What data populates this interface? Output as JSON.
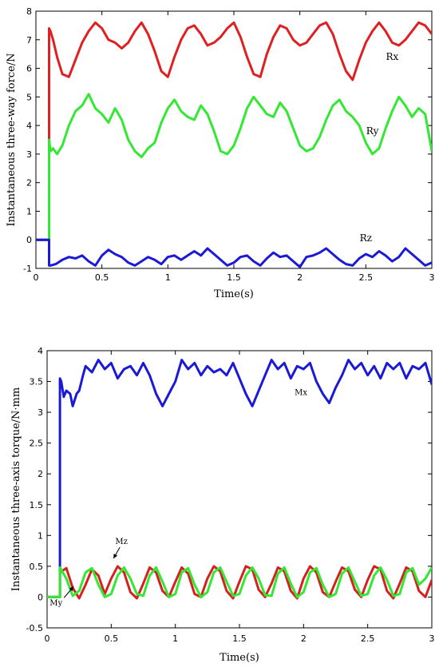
{
  "chart_data": [
    {
      "type": "line",
      "title": "",
      "xlabel": "Time(s)",
      "ylabel": "Instantaneous three-way force/N",
      "xlim": [
        0,
        3
      ],
      "ylim": [
        -1,
        8
      ],
      "xticks": [
        "0",
        "0.5",
        "1",
        "1.5",
        "2",
        "2.5",
        "3"
      ],
      "yticks": [
        "-1",
        "0",
        "1",
        "2",
        "3",
        "4",
        "5",
        "6",
        "7",
        "8"
      ],
      "grid": false,
      "annotations": [
        {
          "text": "Rx",
          "x": 2.7,
          "y": 6.3
        },
        {
          "text": "Ry",
          "x": 2.55,
          "y": 3.7
        },
        {
          "text": "Rz",
          "x": 2.5,
          "y": -0.05
        }
      ],
      "series": [
        {
          "name": "Rx",
          "color": "#e02020",
          "x": [
            0,
            0.1,
            0.1,
            0.11,
            0.13,
            0.16,
            0.2,
            0.25,
            0.3,
            0.35,
            0.4,
            0.45,
            0.5,
            0.55,
            0.6,
            0.65,
            0.7,
            0.75,
            0.8,
            0.85,
            0.9,
            0.95,
            1.0,
            1.05,
            1.1,
            1.15,
            1.2,
            1.25,
            1.3,
            1.35,
            1.4,
            1.45,
            1.5,
            1.55,
            1.6,
            1.65,
            1.7,
            1.75,
            1.8,
            1.85,
            1.9,
            1.95,
            2.0,
            2.05,
            2.1,
            2.15,
            2.2,
            2.25,
            2.3,
            2.35,
            2.4,
            2.45,
            2.5,
            2.55,
            2.6,
            2.65,
            2.7,
            2.75,
            2.8,
            2.85,
            2.9,
            2.95,
            3.0
          ],
          "y": [
            0,
            0,
            7.4,
            7.3,
            7.0,
            6.4,
            5.8,
            5.7,
            6.3,
            6.9,
            7.3,
            7.6,
            7.4,
            7.0,
            6.9,
            6.7,
            6.9,
            7.3,
            7.6,
            7.2,
            6.6,
            5.9,
            5.7,
            6.4,
            7.0,
            7.4,
            7.5,
            7.2,
            6.8,
            6.9,
            7.1,
            7.4,
            7.6,
            7.1,
            6.4,
            5.8,
            5.7,
            6.5,
            7.1,
            7.5,
            7.4,
            7.0,
            6.8,
            6.9,
            7.2,
            7.5,
            7.6,
            7.2,
            6.5,
            5.9,
            5.6,
            6.3,
            6.9,
            7.3,
            7.6,
            7.3,
            6.9,
            6.8,
            7.0,
            7.3,
            7.6,
            7.5,
            7.2
          ]
        },
        {
          "name": "Ry",
          "color": "#33e833",
          "x": [
            0,
            0.1,
            0.1,
            0.11,
            0.13,
            0.16,
            0.2,
            0.25,
            0.3,
            0.35,
            0.4,
            0.45,
            0.5,
            0.55,
            0.6,
            0.65,
            0.7,
            0.75,
            0.8,
            0.85,
            0.9,
            0.95,
            1.0,
            1.05,
            1.1,
            1.15,
            1.2,
            1.25,
            1.3,
            1.35,
            1.4,
            1.45,
            1.5,
            1.55,
            1.6,
            1.65,
            1.7,
            1.75,
            1.8,
            1.85,
            1.9,
            1.95,
            2.0,
            2.05,
            2.1,
            2.15,
            2.2,
            2.25,
            2.3,
            2.35,
            2.4,
            2.45,
            2.5,
            2.55,
            2.6,
            2.65,
            2.7,
            2.75,
            2.8,
            2.85,
            2.9,
            2.95,
            3.0
          ],
          "y": [
            0,
            0,
            3.5,
            3.1,
            3.2,
            3.0,
            3.3,
            4.0,
            4.5,
            4.7,
            5.1,
            4.6,
            4.4,
            4.1,
            4.6,
            4.2,
            3.5,
            3.1,
            2.9,
            3.2,
            3.4,
            4.1,
            4.6,
            4.9,
            4.5,
            4.3,
            4.2,
            4.7,
            4.4,
            3.8,
            3.1,
            3.0,
            3.3,
            3.9,
            4.6,
            5.0,
            4.7,
            4.4,
            4.3,
            4.8,
            4.5,
            3.9,
            3.3,
            3.1,
            3.2,
            3.6,
            4.2,
            4.7,
            4.9,
            4.5,
            4.3,
            4.0,
            3.4,
            3.0,
            3.2,
            3.9,
            4.5,
            5.0,
            4.7,
            4.3,
            4.6,
            4.4,
            3.1
          ]
        },
        {
          "name": "Rz",
          "color": "#1a1ad6",
          "x": [
            0,
            0.1,
            0.1,
            0.11,
            0.15,
            0.2,
            0.25,
            0.3,
            0.35,
            0.4,
            0.45,
            0.5,
            0.55,
            0.6,
            0.65,
            0.7,
            0.75,
            0.8,
            0.85,
            0.9,
            0.95,
            1.0,
            1.05,
            1.1,
            1.15,
            1.2,
            1.25,
            1.3,
            1.35,
            1.4,
            1.45,
            1.5,
            1.55,
            1.6,
            1.65,
            1.7,
            1.75,
            1.8,
            1.85,
            1.9,
            1.95,
            2.0,
            2.05,
            2.1,
            2.15,
            2.2,
            2.25,
            2.3,
            2.35,
            2.4,
            2.45,
            2.5,
            2.55,
            2.6,
            2.65,
            2.7,
            2.75,
            2.8,
            2.85,
            2.9,
            2.95,
            3.0
          ],
          "y": [
            0,
            0,
            -0.9,
            -0.9,
            -0.85,
            -0.7,
            -0.6,
            -0.65,
            -0.55,
            -0.75,
            -0.9,
            -0.55,
            -0.35,
            -0.5,
            -0.6,
            -0.8,
            -0.9,
            -0.75,
            -0.6,
            -0.7,
            -0.85,
            -0.6,
            -0.55,
            -0.7,
            -0.55,
            -0.4,
            -0.55,
            -0.3,
            -0.5,
            -0.7,
            -0.9,
            -0.8,
            -0.6,
            -0.55,
            -0.75,
            -0.9,
            -0.65,
            -0.45,
            -0.6,
            -0.55,
            -0.75,
            -0.95,
            -0.6,
            -0.55,
            -0.45,
            -0.3,
            -0.5,
            -0.7,
            -0.85,
            -0.9,
            -0.65,
            -0.5,
            -0.6,
            -0.4,
            -0.55,
            -0.75,
            -0.6,
            -0.3,
            -0.5,
            -0.7,
            -0.9,
            -0.8
          ]
        }
      ]
    },
    {
      "type": "line",
      "title": "",
      "xlabel": "Time(s)",
      "ylabel": "Instantaneous three-axis torque/N·mm",
      "xlim": [
        0,
        3
      ],
      "ylim": [
        -0.5,
        4
      ],
      "xticks": [
        "0",
        "0.5",
        "1",
        "1.5",
        "2",
        "2.5",
        "3"
      ],
      "yticks": [
        "-0.5",
        "0",
        "0.5",
        "1",
        "1.5",
        "2",
        "2.5",
        "3",
        "3.5",
        "4"
      ],
      "grid": false,
      "annotations": [
        {
          "text": "Mx",
          "x": 1.98,
          "y": 3.28
        },
        {
          "text": "Mz",
          "x": 0.58,
          "y": 0.86
        },
        {
          "text": "My",
          "x": 0.07,
          "y": -0.14
        }
      ],
      "series": [
        {
          "name": "Mx",
          "color": "#1a1ad6",
          "x": [
            0,
            0.1,
            0.1,
            0.11,
            0.13,
            0.15,
            0.18,
            0.2,
            0.23,
            0.25,
            0.28,
            0.3,
            0.35,
            0.4,
            0.45,
            0.5,
            0.55,
            0.6,
            0.65,
            0.7,
            0.75,
            0.8,
            0.85,
            0.9,
            0.95,
            1.0,
            1.05,
            1.1,
            1.15,
            1.2,
            1.25,
            1.3,
            1.35,
            1.4,
            1.45,
            1.5,
            1.55,
            1.6,
            1.65,
            1.7,
            1.75,
            1.8,
            1.85,
            1.9,
            1.95,
            2.0,
            2.05,
            2.1,
            2.15,
            2.2,
            2.25,
            2.3,
            2.35,
            2.4,
            2.45,
            2.5,
            2.55,
            2.6,
            2.65,
            2.7,
            2.75,
            2.8,
            2.85,
            2.9,
            2.95,
            3.0
          ],
          "y": [
            0,
            0,
            3.55,
            3.5,
            3.25,
            3.35,
            3.3,
            3.1,
            3.3,
            3.35,
            3.6,
            3.75,
            3.65,
            3.85,
            3.7,
            3.8,
            3.55,
            3.7,
            3.75,
            3.6,
            3.8,
            3.6,
            3.3,
            3.1,
            3.3,
            3.5,
            3.85,
            3.7,
            3.8,
            3.6,
            3.75,
            3.65,
            3.7,
            3.6,
            3.8,
            3.55,
            3.3,
            3.1,
            3.35,
            3.6,
            3.85,
            3.7,
            3.8,
            3.55,
            3.75,
            3.7,
            3.8,
            3.5,
            3.3,
            3.15,
            3.4,
            3.6,
            3.85,
            3.7,
            3.8,
            3.6,
            3.75,
            3.55,
            3.8,
            3.7,
            3.8,
            3.55,
            3.75,
            3.7,
            3.8,
            3.45
          ]
        },
        {
          "name": "Mz",
          "color": "#d62020",
          "x": [
            0,
            0.1,
            0.1,
            0.15,
            0.2,
            0.25,
            0.3,
            0.35,
            0.4,
            0.45,
            0.5,
            0.55,
            0.6,
            0.65,
            0.7,
            0.75,
            0.8,
            0.85,
            0.9,
            0.95,
            1.0,
            1.05,
            1.1,
            1.15,
            1.2,
            1.25,
            1.3,
            1.35,
            1.4,
            1.45,
            1.5,
            1.55,
            1.6,
            1.65,
            1.7,
            1.75,
            1.8,
            1.85,
            1.9,
            1.95,
            2.0,
            2.05,
            2.1,
            2.15,
            2.2,
            2.25,
            2.3,
            2.35,
            2.4,
            2.45,
            2.5,
            2.55,
            2.6,
            2.65,
            2.7,
            2.75,
            2.8,
            2.85,
            2.9,
            2.95,
            3.0
          ],
          "y": [
            0,
            0,
            0.4,
            0.47,
            0.15,
            -0.02,
            0.2,
            0.45,
            0.35,
            0.05,
            0.3,
            0.5,
            0.4,
            0.08,
            -0.02,
            0.22,
            0.48,
            0.4,
            0.1,
            0.0,
            0.25,
            0.48,
            0.38,
            0.05,
            0.0,
            0.3,
            0.5,
            0.42,
            0.1,
            -0.02,
            0.25,
            0.5,
            0.45,
            0.12,
            0.0,
            0.22,
            0.48,
            0.42,
            0.1,
            -0.02,
            0.3,
            0.5,
            0.4,
            0.08,
            0.0,
            0.25,
            0.48,
            0.42,
            0.12,
            0.0,
            0.28,
            0.5,
            0.45,
            0.1,
            -0.02,
            0.22,
            0.48,
            0.42,
            0.1,
            0.0,
            0.28
          ]
        },
        {
          "name": "My",
          "color": "#33e833",
          "x": [
            0,
            0.1,
            0.1,
            0.15,
            0.2,
            0.25,
            0.3,
            0.35,
            0.4,
            0.45,
            0.5,
            0.55,
            0.6,
            0.65,
            0.7,
            0.75,
            0.8,
            0.85,
            0.9,
            0.95,
            1.0,
            1.05,
            1.1,
            1.15,
            1.2,
            1.25,
            1.3,
            1.35,
            1.4,
            1.45,
            1.5,
            1.55,
            1.6,
            1.65,
            1.7,
            1.75,
            1.8,
            1.85,
            1.9,
            1.95,
            2.0,
            2.05,
            2.1,
            2.15,
            2.2,
            2.25,
            2.3,
            2.35,
            2.4,
            2.45,
            2.5,
            2.55,
            2.6,
            2.65,
            2.7,
            2.75,
            2.8,
            2.85,
            2.9,
            2.95,
            3.0
          ],
          "y": [
            0,
            0,
            0.48,
            0.3,
            0.02,
            0.1,
            0.4,
            0.47,
            0.2,
            0.0,
            0.05,
            0.35,
            0.48,
            0.3,
            0.05,
            0.02,
            0.35,
            0.48,
            0.25,
            0.0,
            0.05,
            0.4,
            0.47,
            0.2,
            0.0,
            0.08,
            0.4,
            0.48,
            0.25,
            0.02,
            0.05,
            0.35,
            0.48,
            0.3,
            0.03,
            0.02,
            0.38,
            0.48,
            0.22,
            0.0,
            0.08,
            0.4,
            0.47,
            0.2,
            0.0,
            0.05,
            0.38,
            0.48,
            0.25,
            0.02,
            0.05,
            0.35,
            0.48,
            0.28,
            0.02,
            0.05,
            0.4,
            0.47,
            0.2,
            0.3,
            0.48
          ]
        }
      ]
    }
  ]
}
